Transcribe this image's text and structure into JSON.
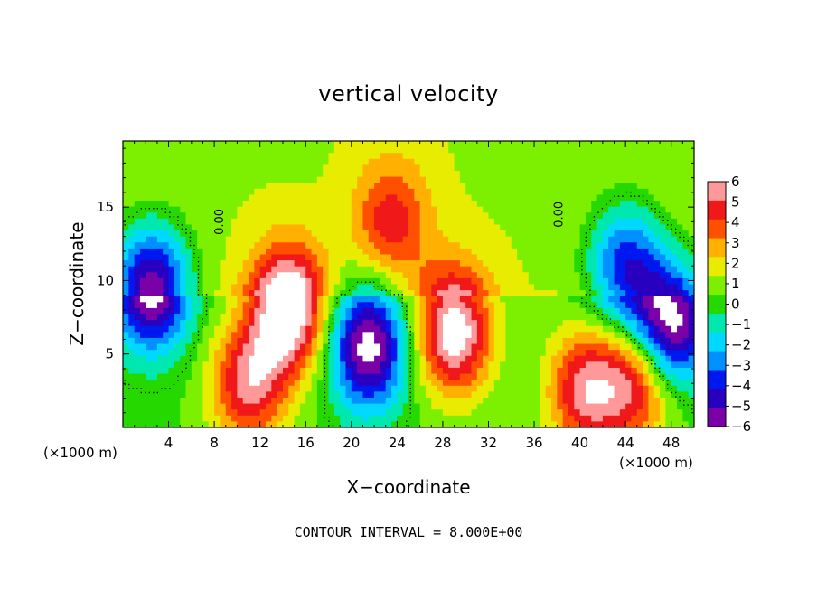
{
  "chart_data": {
    "type": "heatmap",
    "title": "vertical velocity",
    "xlabel": "X−coordinate",
    "ylabel": "Z−coordinate",
    "x_unit": "(×1000 m)",
    "x_ticks": [
      "4",
      "8",
      "12",
      "16",
      "20",
      "24",
      "28",
      "32",
      "36",
      "40",
      "44",
      "48"
    ],
    "y_ticks": [
      "5",
      "10",
      "15"
    ],
    "xlim": [
      0,
      50
    ],
    "ylim": [
      0,
      19.5
    ],
    "colorbar_ticks": [
      "6",
      "5",
      "4",
      "3",
      "2",
      "1",
      "0",
      "−1",
      "−2",
      "−3",
      "−4",
      "−5",
      "−6"
    ],
    "colorbar_range": [
      -6,
      6
    ],
    "contour_label": "0.00",
    "contour_interval_text": "CONTOUR INTERVAL = 8.000E+00",
    "features": [
      {
        "x": 14.5,
        "z": 8.0,
        "w": 7.0,
        "sign": "updraft"
      },
      {
        "x": 29.0,
        "z": 6.5,
        "w": 6.5,
        "sign": "updraft"
      },
      {
        "x": 11.0,
        "z": 3.0,
        "w": 5.0,
        "sign": "updraft"
      },
      {
        "x": 40.5,
        "z": 2.5,
        "w": 5.0,
        "sign": "updraft"
      },
      {
        "x": 45.0,
        "z": 3.0,
        "w": 4.5,
        "sign": "updraft"
      },
      {
        "x": 23.5,
        "z": 14.0,
        "w": 3.5,
        "sign": "updraft"
      },
      {
        "x": 21.5,
        "z": 5.5,
        "w": -7.0,
        "sign": "downdraft"
      },
      {
        "x": 2.5,
        "z": 9.5,
        "w": -7.0,
        "sign": "downdraft"
      },
      {
        "x": 48.0,
        "z": 7.0,
        "w": -7.0,
        "sign": "downdraft"
      },
      {
        "x": 44.0,
        "z": 11.0,
        "w": -5.0,
        "sign": "downdraft"
      }
    ],
    "colors": {
      "ramp": [
        "#7a00a8",
        "#2a00c0",
        "#0018f0",
        "#0090ff",
        "#00d8ff",
        "#00e8b0",
        "#24d800",
        "#7cf000",
        "#e8ec00",
        "#ffb000",
        "#ff5000",
        "#f01818",
        "#ff9898"
      ],
      "saturated_high": "#ffffff",
      "saturated_low": "#ffffff"
    }
  }
}
